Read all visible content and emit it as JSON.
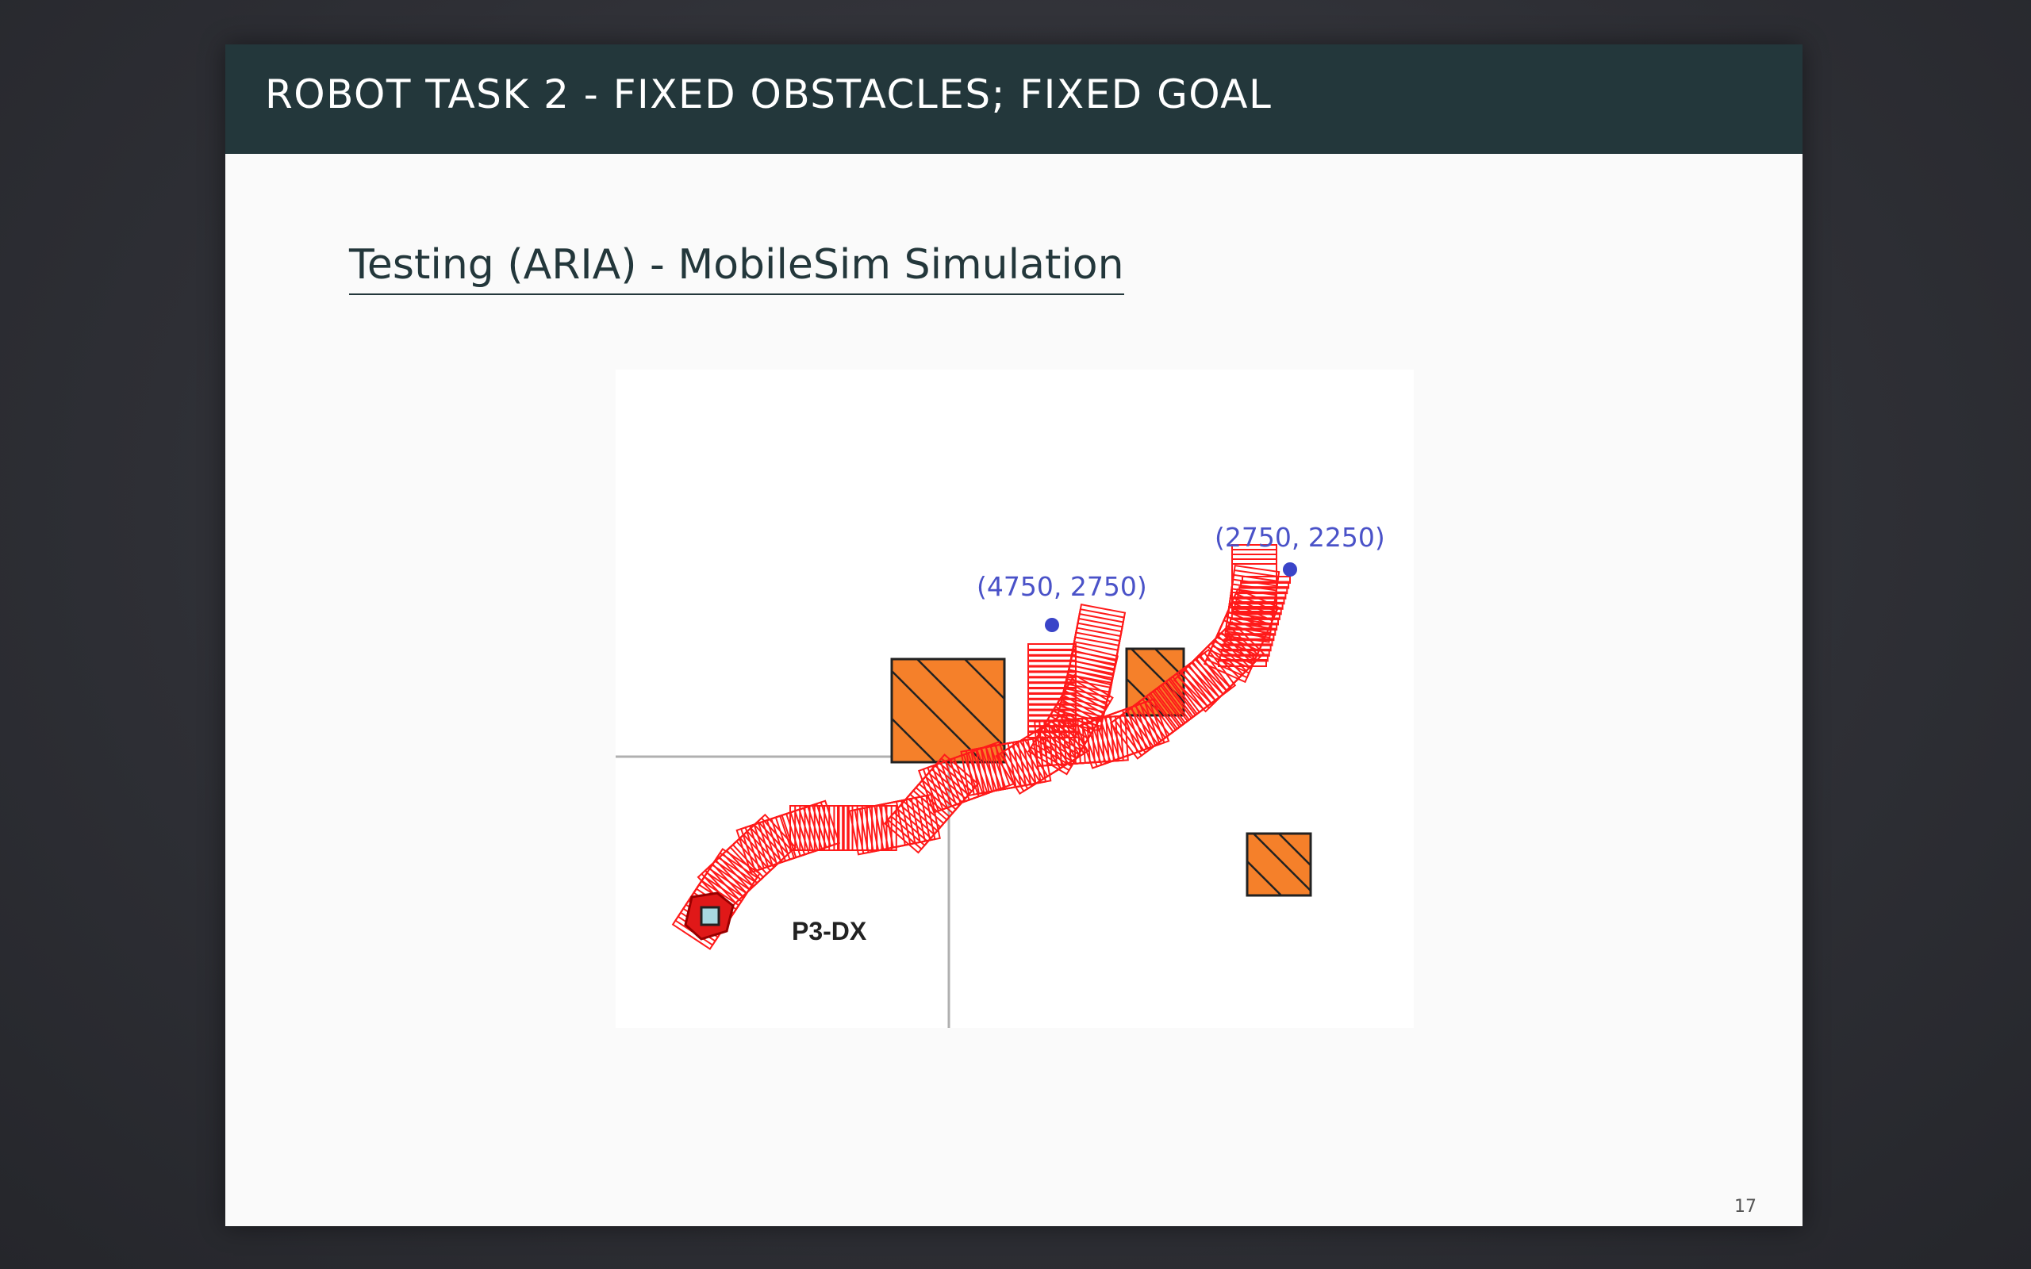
{
  "slide": {
    "title": "ROBOT TASK 2 - FIXED OBSTACLES; FIXED GOAL",
    "subtitle": "Testing (ARIA) - MobileSim Simulation",
    "page_number": "17"
  },
  "figure": {
    "waypoints": [
      {
        "label": "(2750, 2250)"
      },
      {
        "label": "(4750, 2750)"
      }
    ],
    "robot": {
      "label": "P3-DX"
    },
    "colors": {
      "path": "#ff1a1a",
      "obstacle": "#f5802a",
      "waypoint": "#3a44c8",
      "robot_body": "#e01818",
      "robot_core": "#a8d8e0"
    }
  }
}
